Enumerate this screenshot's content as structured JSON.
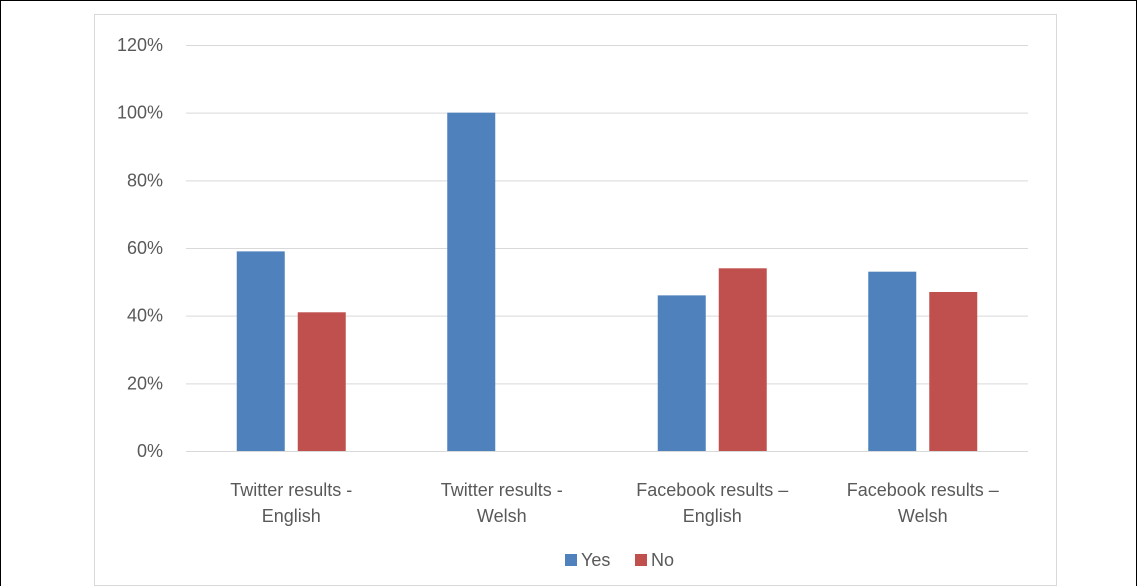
{
  "chart_data": {
    "type": "bar",
    "categories": [
      [
        "Twitter results -",
        "English"
      ],
      [
        "Twitter results -",
        "Welsh"
      ],
      [
        "Facebook results –",
        "English"
      ],
      [
        "Facebook results –",
        "Welsh"
      ]
    ],
    "series": [
      {
        "name": "Yes",
        "values": [
          59,
          100,
          46,
          53
        ],
        "color": "#4F81BD"
      },
      {
        "name": "No",
        "values": [
          41,
          0,
          54,
          47
        ],
        "color": "#C0504D"
      }
    ],
    "y_ticks": [
      "0%",
      "20%",
      "40%",
      "60%",
      "80%",
      "100%",
      "120%"
    ],
    "ylim": [
      0,
      120
    ],
    "grid": true,
    "legend_position": "bottom"
  }
}
